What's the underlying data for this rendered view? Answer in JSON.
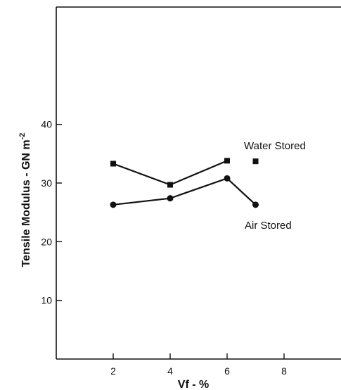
{
  "chart_data": {
    "type": "line",
    "xlabel": "Vf - %",
    "ylabel_main": "Tensile  Modulus  -  GN  m",
    "ylabel_sup": "-2",
    "xlim": [
      0,
      10
    ],
    "ylim": [
      0,
      60
    ],
    "x_ticks": [
      2,
      4,
      6,
      8
    ],
    "y_ticks": [
      10,
      20,
      30,
      40
    ],
    "grid": false,
    "series": [
      {
        "name": "Water Stored",
        "marker": "square",
        "x": [
          2,
          4,
          6,
          7
        ],
        "y": [
          33.3,
          29.7,
          33.8,
          33.7
        ],
        "segments": [
          [
            0,
            1,
            2
          ]
        ]
      },
      {
        "name": "Air Stored",
        "marker": "circle",
        "x": [
          2,
          4,
          6,
          7
        ],
        "y": [
          26.3,
          27.4,
          30.8,
          26.3
        ],
        "segments": [
          [
            0,
            1,
            2,
            3
          ]
        ]
      }
    ]
  }
}
